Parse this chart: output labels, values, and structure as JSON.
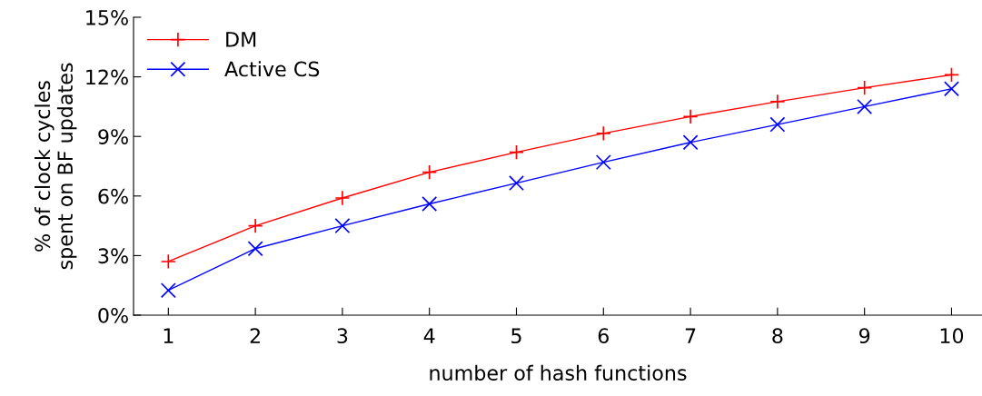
{
  "chart_data": {
    "type": "line",
    "xlabel": "number of hash functions",
    "ylabel": "% of clock cycles\nspent on BF updates",
    "x": [
      1,
      2,
      3,
      4,
      5,
      6,
      7,
      8,
      9,
      10
    ],
    "series": [
      {
        "name": "DM",
        "color": "#ff0000",
        "marker": "plus",
        "values": [
          2.7,
          4.5,
          5.9,
          7.2,
          8.2,
          9.15,
          10.0,
          10.75,
          11.45,
          12.1
        ]
      },
      {
        "name": "Active CS",
        "color": "#0000ff",
        "marker": "cross",
        "values": [
          1.25,
          3.35,
          4.5,
          5.6,
          6.65,
          7.7,
          8.7,
          9.6,
          10.5,
          11.4
        ]
      }
    ],
    "xlim": [
      0.6,
      10.35
    ],
    "xticks": [
      1,
      2,
      3,
      4,
      5,
      6,
      7,
      8,
      9,
      10
    ],
    "ylim": [
      0,
      15
    ],
    "yticks": [
      {
        "value": 0,
        "label": "0%"
      },
      {
        "value": 3,
        "label": "3%"
      },
      {
        "value": 6,
        "label": "6%"
      },
      {
        "value": 9,
        "label": "9%"
      },
      {
        "value": 12,
        "label": "12%"
      },
      {
        "value": 15,
        "label": "15%"
      }
    ],
    "grid": false,
    "legend": "top left",
    "line_style": "solid"
  }
}
